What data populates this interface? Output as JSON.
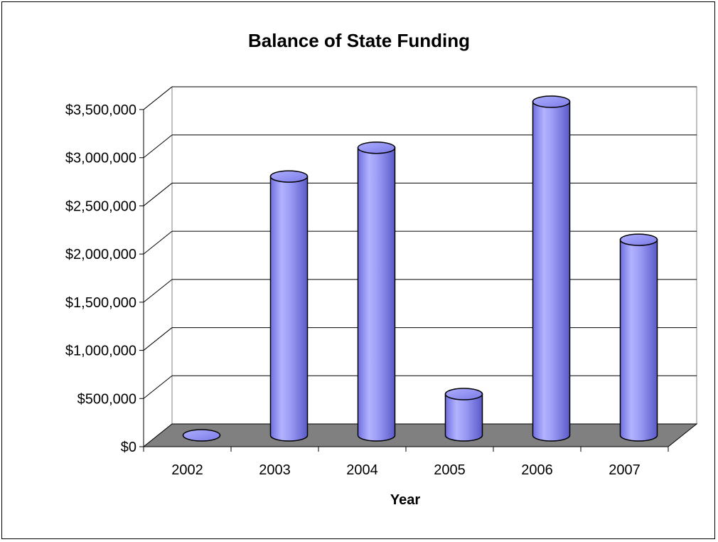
{
  "chart_data": {
    "type": "bar",
    "title": "Balance of State Funding",
    "xlabel": "Year",
    "ylabel": "",
    "categories": [
      "2002",
      "2003",
      "2004",
      "2005",
      "2006",
      "2007"
    ],
    "values": [
      0,
      2700000,
      3000000,
      430000,
      3480000,
      2040000
    ],
    "ylim": [
      0,
      3500000
    ],
    "ytick_values": [
      0,
      500000,
      1000000,
      1500000,
      2000000,
      2500000,
      3000000,
      3500000
    ],
    "ytick_labels": [
      "$0",
      "$500,000",
      "$1,000,000",
      "$1,500,000",
      "$2,000,000",
      "$2,500,000",
      "$3,000,000",
      "$3,500,000"
    ],
    "grid": true,
    "legend": "none",
    "colors": {
      "bar": "#9999ff",
      "bar_dark": "#6b6bd6",
      "floor": "#808080"
    }
  }
}
